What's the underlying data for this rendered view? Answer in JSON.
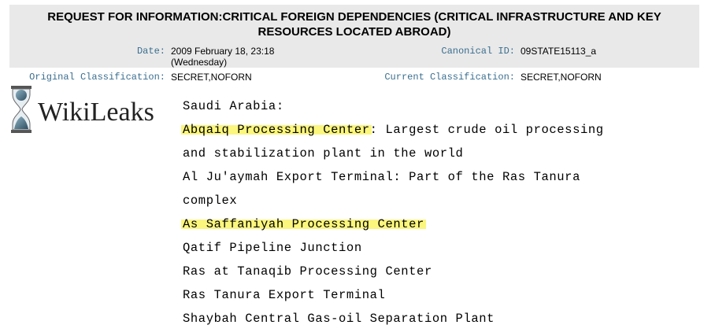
{
  "header": {
    "title_line1": "REQUEST FOR INFORMATION:CRITICAL FOREIGN DEPENDENCIES (CRITICAL INFRASTRUCTURE AND KEY",
    "title_line2": "RESOURCES LOCATED ABROAD)",
    "date_label": "Date:",
    "date_value_line1": "2009 February 18, 23:18",
    "date_value_line2": "(Wednesday)",
    "canonical_label": "Canonical ID:",
    "canonical_value": "09STATE15113_a",
    "orig_class_label": "Original Classification:",
    "orig_class_value": "SECRET,NOFORN",
    "curr_class_label": "Current Classification:",
    "curr_class_value": "SECRET,NOFORN"
  },
  "logo": {
    "text": "WikiLeaks",
    "icon": "hourglass-globe-icon"
  },
  "body": {
    "heading": "Saudi Arabia:",
    "line1_highlight": "Abqaiq Processing Center",
    "line1_rest": ": Largest crude oil processing",
    "line2": "and stabilization plant in the world",
    "line3": "Al Ju'aymah Export Terminal: Part of the Ras Tanura",
    "line4": "complex",
    "line5_highlight": "As Saffaniyah Processing Center",
    "line6": "Qatif Pipeline Junction",
    "line7": "Ras at Tanaqib Processing Center",
    "line8": "Ras Tanura Export Terminal",
    "line9": "Shaybah Central Gas-oil Separation Plant"
  },
  "colors": {
    "highlight": "#fbf67d",
    "label_blue": "#3a6e8f",
    "header_bg": "#e9e9e9"
  }
}
